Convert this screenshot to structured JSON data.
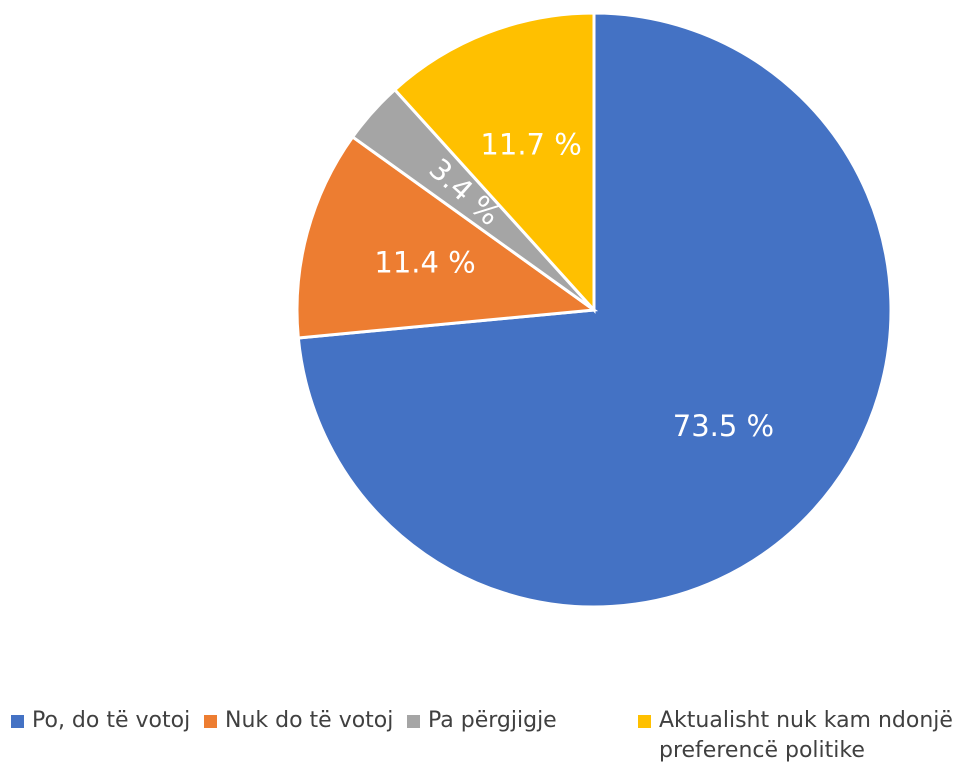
{
  "chart_data": {
    "type": "pie",
    "title": "",
    "start_angle_deg": 0,
    "direction": "clockwise",
    "legend_position": "bottom",
    "slices": [
      {
        "name": "Po, do të votoj",
        "value": 73.5,
        "label": "73.5 %",
        "color": "#4472C4"
      },
      {
        "name": "Nuk do të votoj",
        "value": 11.4,
        "label": "11.4 %",
        "color": "#ED7D31"
      },
      {
        "name": "Pa përgjigje",
        "value": 3.4,
        "label": "3.4 %",
        "color": "#A5A5A5"
      },
      {
        "name": "Aktualisht nuk kam ndonjë preferencë politike",
        "value": 11.7,
        "label": "11.7 %",
        "color": "#FFC000"
      }
    ]
  }
}
